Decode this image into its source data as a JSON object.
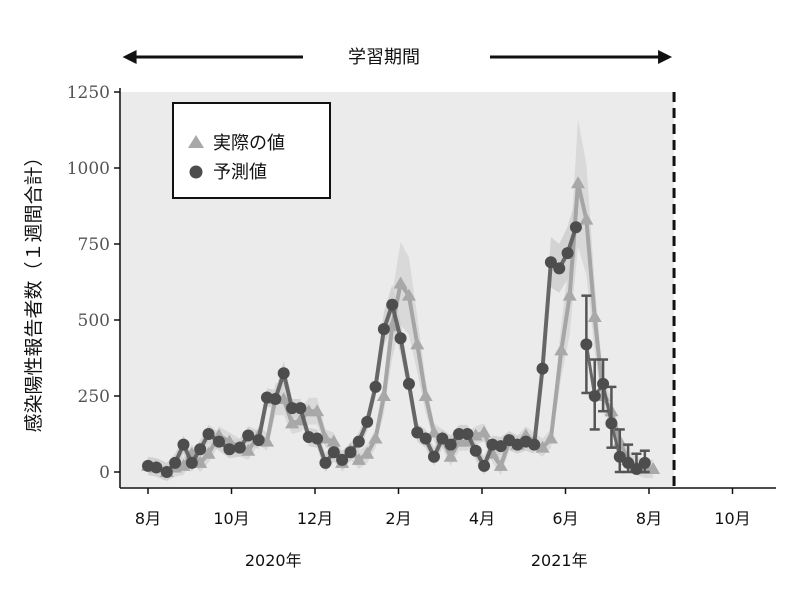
{
  "chart_data": {
    "type": "line",
    "ylabel": "感染陽性報告者数（１週間合計）",
    "ylim": [
      0,
      1250
    ],
    "yticks": [
      0,
      250,
      500,
      750,
      1000,
      1250
    ],
    "yticks_labels": [
      "0",
      "250",
      "500",
      "750",
      "1000",
      "1250"
    ],
    "x_month_ticks": [
      {
        "label": "8月",
        "month": 0
      },
      {
        "label": "10月",
        "month": 2
      },
      {
        "label": "12月",
        "month": 4
      },
      {
        "label": "2月",
        "month": 6
      },
      {
        "label": "4月",
        "month": 8
      },
      {
        "label": "6月",
        "month": 10
      },
      {
        "label": "8月",
        "month": 12
      },
      {
        "label": "10月",
        "month": 14
      }
    ],
    "x_years": [
      {
        "label": "2020年",
        "month": 3
      },
      {
        "label": "2021年",
        "month": 9.85
      }
    ],
    "x_range_months": [
      -0.7,
      14.9
    ],
    "training_period": {
      "label": "学習期間",
      "start_month": -0.25,
      "end_month": 12.6
    },
    "legend": {
      "position": "top-left",
      "entries": [
        {
          "label": "実際の値",
          "marker": "triangle"
        },
        {
          "label": "予測値",
          "marker": "circle"
        }
      ]
    },
    "grid": false,
    "series": [
      {
        "name": "実際の値",
        "marker": "triangle",
        "points": [
          [
            0.0,
            20
          ],
          [
            0.2,
            15
          ],
          [
            0.45,
            0
          ],
          [
            0.65,
            15
          ],
          [
            0.85,
            20
          ],
          [
            1.05,
            60
          ],
          [
            1.25,
            30
          ],
          [
            1.45,
            60
          ],
          [
            1.7,
            120
          ],
          [
            1.95,
            100
          ],
          [
            2.2,
            80
          ],
          [
            2.4,
            70
          ],
          [
            2.65,
            120
          ],
          [
            2.85,
            100
          ],
          [
            3.05,
            240
          ],
          [
            3.25,
            240
          ],
          [
            3.45,
            160
          ],
          [
            3.65,
            170
          ],
          [
            3.85,
            200
          ],
          [
            4.05,
            200
          ],
          [
            4.25,
            110
          ],
          [
            4.45,
            100
          ],
          [
            4.65,
            30
          ],
          [
            4.85,
            70
          ],
          [
            5.05,
            40
          ],
          [
            5.25,
            60
          ],
          [
            5.45,
            110
          ],
          [
            5.65,
            250
          ],
          [
            5.85,
            480
          ],
          [
            6.05,
            620
          ],
          [
            6.25,
            580
          ],
          [
            6.45,
            420
          ],
          [
            6.65,
            250
          ],
          [
            6.85,
            130
          ],
          [
            7.05,
            110
          ],
          [
            7.25,
            50
          ],
          [
            7.45,
            100
          ],
          [
            7.65,
            100
          ],
          [
            7.85,
            120
          ],
          [
            8.05,
            130
          ],
          [
            8.25,
            60
          ],
          [
            8.45,
            20
          ],
          [
            8.65,
            100
          ],
          [
            8.85,
            90
          ],
          [
            9.05,
            120
          ],
          [
            9.25,
            100
          ],
          [
            9.45,
            80
          ],
          [
            9.65,
            110
          ],
          [
            9.9,
            400
          ],
          [
            10.1,
            580
          ],
          [
            10.3,
            950
          ],
          [
            10.5,
            830
          ],
          [
            10.7,
            510
          ],
          [
            10.9,
            250
          ],
          [
            11.1,
            200
          ],
          [
            11.3,
            100
          ],
          [
            11.5,
            40
          ],
          [
            11.7,
            20
          ],
          [
            11.9,
            10
          ],
          [
            12.1,
            10
          ]
        ]
      },
      {
        "name": "予測値",
        "marker": "circle",
        "points": [
          [
            0.0,
            20
          ],
          [
            0.2,
            15
          ],
          [
            0.45,
            0
          ],
          [
            0.65,
            30
          ],
          [
            0.85,
            90
          ],
          [
            1.05,
            30
          ],
          [
            1.25,
            75
          ],
          [
            1.45,
            125
          ],
          [
            1.7,
            100
          ],
          [
            1.95,
            75
          ],
          [
            2.2,
            80
          ],
          [
            2.4,
            120
          ],
          [
            2.65,
            105
          ],
          [
            2.85,
            245
          ],
          [
            3.05,
            240
          ],
          [
            3.25,
            325
          ],
          [
            3.45,
            210
          ],
          [
            3.65,
            210
          ],
          [
            3.85,
            115
          ],
          [
            4.05,
            110
          ],
          [
            4.25,
            30
          ],
          [
            4.45,
            65
          ],
          [
            4.65,
            40
          ],
          [
            4.85,
            65
          ],
          [
            5.05,
            100
          ],
          [
            5.25,
            165
          ],
          [
            5.45,
            280
          ],
          [
            5.65,
            470
          ],
          [
            5.85,
            550
          ],
          [
            6.05,
            440
          ],
          [
            6.25,
            290
          ],
          [
            6.45,
            130
          ],
          [
            6.65,
            110
          ],
          [
            6.85,
            50
          ],
          [
            7.05,
            110
          ],
          [
            7.25,
            90
          ],
          [
            7.45,
            125
          ],
          [
            7.65,
            125
          ],
          [
            7.85,
            70
          ],
          [
            8.05,
            20
          ],
          [
            8.25,
            90
          ],
          [
            8.45,
            85
          ],
          [
            8.65,
            105
          ],
          [
            8.85,
            90
          ],
          [
            9.05,
            100
          ],
          [
            9.25,
            90
          ],
          [
            9.45,
            340
          ],
          [
            9.65,
            690
          ],
          [
            9.85,
            670
          ],
          [
            10.05,
            720
          ],
          [
            10.25,
            805
          ]
        ]
      },
      {
        "name": "予測値",
        "marker": "circle",
        "points": [
          [
            10.5,
            420
          ],
          [
            10.7,
            250
          ],
          [
            10.9,
            290
          ],
          [
            11.1,
            160
          ],
          [
            11.3,
            50
          ],
          [
            11.5,
            30
          ],
          [
            11.7,
            10
          ],
          [
            11.9,
            30
          ]
        ],
        "error": [
          [
            260,
            580
          ],
          [
            140,
            370
          ],
          [
            200,
            370
          ],
          [
            80,
            280
          ],
          [
            0,
            140
          ],
          [
            0,
            90
          ],
          [
            0,
            60
          ],
          [
            0,
            70
          ]
        ]
      }
    ]
  }
}
